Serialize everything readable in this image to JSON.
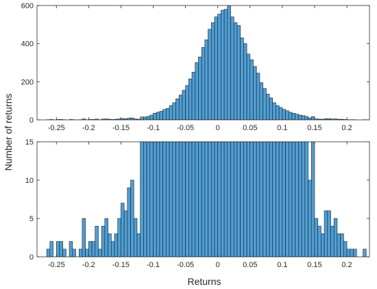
{
  "labels": {
    "ylabel": "Number of returns",
    "xlabel": "Returns"
  },
  "colors": {
    "bar_fill": "#4f9fd6",
    "bar_stroke": "#1a1a1a",
    "axis": "#262626"
  },
  "chart_data": [
    {
      "type": "bar",
      "title": "",
      "xlabel": "",
      "ylabel": "",
      "xlim": [
        -0.28,
        0.235
      ],
      "ylim": [
        0,
        600
      ],
      "x_ticks": [
        -0.25,
        -0.2,
        -0.15,
        -0.1,
        -0.05,
        0,
        0.05,
        0.1,
        0.15,
        0.2
      ],
      "x_tick_labels": [
        "-0.25",
        "-0.2",
        "-0.15",
        "-0.1",
        "-0.05",
        "0",
        "0.05",
        "0.1",
        "0.15",
        "0.2"
      ],
      "y_ticks": [
        0,
        200,
        400,
        600
      ],
      "y_tick_labels": [
        "0",
        "200",
        "400",
        "600"
      ],
      "grid": false,
      "bin_start": -0.265,
      "bin_width": 0.005,
      "values": [
        1,
        2,
        0,
        2,
        2,
        1,
        0,
        2,
        1,
        0,
        1,
        5,
        1,
        2,
        2,
        4,
        1,
        4,
        5,
        3,
        2,
        3,
        5,
        7,
        6,
        9,
        10,
        5,
        3,
        15,
        15,
        18,
        25,
        35,
        40,
        45,
        55,
        60,
        75,
        90,
        110,
        130,
        155,
        180,
        215,
        250,
        300,
        330,
        380,
        420,
        475,
        510,
        540,
        555,
        575,
        580,
        600,
        540,
        510,
        495,
        430,
        400,
        345,
        315,
        280,
        245,
        195,
        165,
        135,
        115,
        90,
        75,
        65,
        55,
        48,
        40,
        35,
        30,
        25,
        22,
        18,
        10,
        17,
        5,
        4,
        3,
        6,
        6,
        4,
        5,
        3,
        3,
        2,
        1,
        1,
        1,
        0,
        0,
        1,
        0,
        0,
        0
      ],
      "bar_orientation": "vertical"
    },
    {
      "type": "bar",
      "title": "",
      "xlabel": "Returns",
      "ylabel": "",
      "xlim": [
        -0.28,
        0.235
      ],
      "ylim": [
        0,
        15
      ],
      "x_ticks": [
        -0.25,
        -0.2,
        -0.15,
        -0.1,
        -0.05,
        0,
        0.05,
        0.1,
        0.15,
        0.2
      ],
      "x_tick_labels": [
        "-0.25",
        "-0.2",
        "-0.15",
        "-0.1",
        "-0.05",
        "0",
        "0.05",
        "0.1",
        "0.15",
        "0.2"
      ],
      "y_ticks": [
        0,
        5,
        10,
        15
      ],
      "y_tick_labels": [
        "0",
        "5",
        "10",
        "15"
      ],
      "grid": false,
      "bin_start": -0.265,
      "bin_width": 0.005,
      "values": [
        1,
        2,
        0,
        2,
        2,
        1,
        0,
        2,
        1,
        0,
        1,
        5,
        1,
        2,
        2,
        4,
        1,
        4,
        5,
        3,
        2,
        3,
        5,
        7,
        6,
        9,
        10,
        5,
        3,
        15,
        15,
        18,
        25,
        35,
        40,
        45,
        55,
        60,
        75,
        90,
        110,
        130,
        155,
        180,
        215,
        250,
        300,
        330,
        380,
        420,
        475,
        510,
        540,
        555,
        575,
        580,
        600,
        540,
        510,
        495,
        430,
        400,
        345,
        315,
        280,
        245,
        195,
        165,
        135,
        115,
        90,
        75,
        65,
        55,
        48,
        40,
        35,
        30,
        25,
        22,
        18,
        10,
        17,
        5,
        4,
        3,
        6,
        6,
        4,
        5,
        3,
        3,
        2,
        1,
        1,
        1,
        0,
        0,
        1,
        0,
        0,
        0
      ],
      "note_clipped": true
    }
  ]
}
